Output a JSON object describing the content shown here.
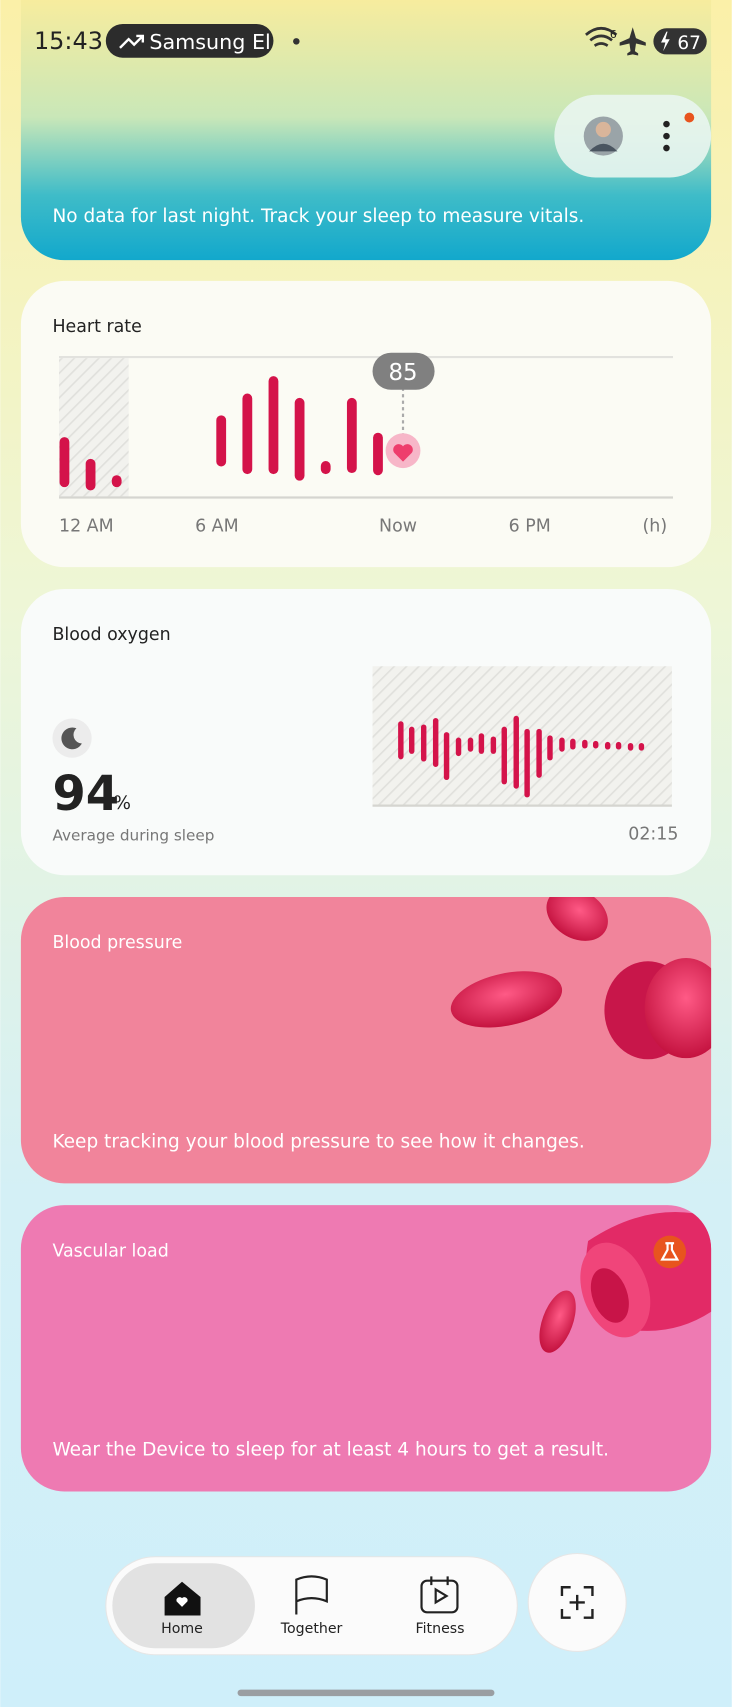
{
  "status_bar": {
    "time": "15:43",
    "notification": "Samsung El",
    "wifi_badge": "6",
    "battery": "67"
  },
  "sleep_card": {
    "message": "No data for last night. Track your sleep to measure vitals."
  },
  "heart_rate": {
    "title": "Heart rate",
    "current": "85",
    "axis_labels": [
      "12 AM",
      "6 AM",
      "Now",
      "6 PM",
      "(h)"
    ]
  },
  "blood_oxygen": {
    "title": "Blood oxygen",
    "value": "94",
    "unit": "%",
    "caption": "Average during sleep",
    "duration": "02:15"
  },
  "blood_pressure": {
    "title": "Blood pressure",
    "message": "Keep tracking your blood pressure to see how it changes."
  },
  "vascular_load": {
    "title": "Vascular load",
    "message": "Wear the Device to sleep for at least 4 hours to get a result."
  },
  "nav": {
    "items": [
      "Home",
      "Together",
      "Fitness"
    ]
  }
}
